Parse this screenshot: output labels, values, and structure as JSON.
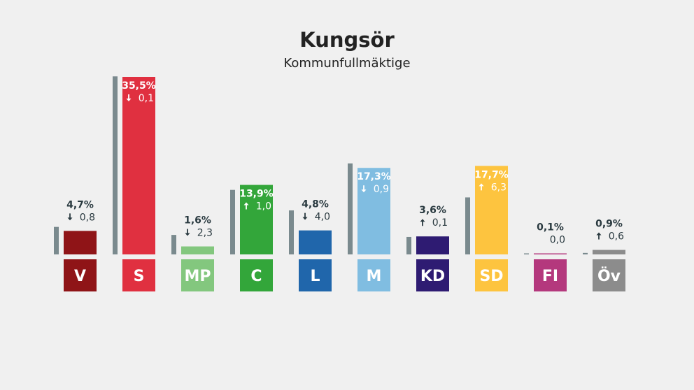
{
  "title": "Kungsör",
  "subtitle": "Kommunfullmäktige",
  "chart_data": {
    "type": "bar",
    "title": "Kungsör",
    "subtitle": "Kommunfullmäktige",
    "unit": "%",
    "previous_bar_color": "#7a8a8e",
    "categories": [
      "V",
      "S",
      "MP",
      "C",
      "L",
      "M",
      "KD",
      "SD",
      "FI",
      "Öv"
    ],
    "series": [
      {
        "values": [
          4.7,
          35.5,
          1.6,
          13.9,
          4.8,
          17.3,
          3.6,
          17.7,
          0.1,
          0.9
        ]
      },
      {
        "values": [
          5.5,
          35.6,
          3.9,
          12.9,
          8.8,
          18.2,
          3.5,
          11.4,
          0.1,
          0.3
        ]
      }
    ],
    "value_labels": [
      "4,7%",
      "35,5%",
      "1,6%",
      "13,9%",
      "4,8%",
      "17,3%",
      "3,6%",
      "17,7%",
      "0,1%",
      "0,9%"
    ],
    "change_labels": [
      "0,8",
      "0,1",
      "2,3",
      "1,0",
      "4,0",
      "0,9",
      "0,1",
      "6,3",
      "0,0",
      "0,6"
    ],
    "change_direction": [
      "down",
      "down",
      "down",
      "up",
      "down",
      "down",
      "up",
      "up",
      "none",
      "up"
    ],
    "party_colors": [
      "#8f1417",
      "#e03040",
      "#83c77e",
      "#33a63a",
      "#2066ab",
      "#80bde1",
      "#2e1b72",
      "#fdc43f",
      "#b4387d",
      "#8c8c8c"
    ],
    "ylim": [
      0,
      35.5
    ]
  }
}
